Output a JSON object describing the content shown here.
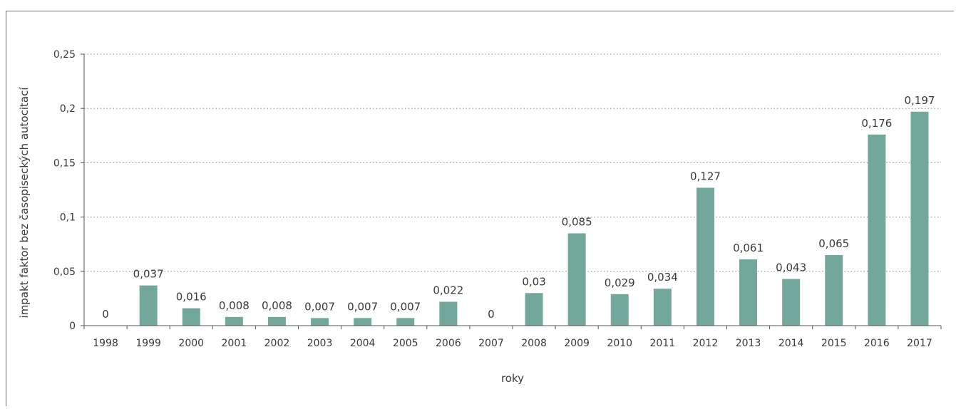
{
  "chart_data": {
    "type": "bar",
    "title": "",
    "xlabel": "roky",
    "ylabel": "impakt faktor bez časopiseckých autocitací",
    "ylim": [
      0,
      0.25
    ],
    "yticks": [
      {
        "value": 0,
        "label": "0"
      },
      {
        "value": 0.05,
        "label": "0,05"
      },
      {
        "value": 0.1,
        "label": "0,1"
      },
      {
        "value": 0.15,
        "label": "0,15"
      },
      {
        "value": 0.2,
        "label": "0,2"
      },
      {
        "value": 0.25,
        "label": "0,25"
      }
    ],
    "grid": true,
    "bar_color": "#72a89b",
    "categories": [
      "1998",
      "1999",
      "2000",
      "2001",
      "2002",
      "2003",
      "2004",
      "2005",
      "2006",
      "2007",
      "2008",
      "2009",
      "2010",
      "2011",
      "2012",
      "2013",
      "2014",
      "2015",
      "2016",
      "2017"
    ],
    "values": [
      0,
      0.037,
      0.016,
      0.008,
      0.008,
      0.007,
      0.007,
      0.007,
      0.022,
      0,
      0.03,
      0.085,
      0.029,
      0.034,
      0.127,
      0.061,
      0.043,
      0.065,
      0.176,
      0.197
    ],
    "value_labels": [
      "0",
      "0,037",
      "0,016",
      "0,008",
      "0,008",
      "0,007",
      "0,007",
      "0,007",
      "0,022",
      "0",
      "0,03",
      "0,085",
      "0,029",
      "0,034",
      "0,127",
      "0,061",
      "0,043",
      "0,065",
      "0,176",
      "0,197"
    ]
  }
}
